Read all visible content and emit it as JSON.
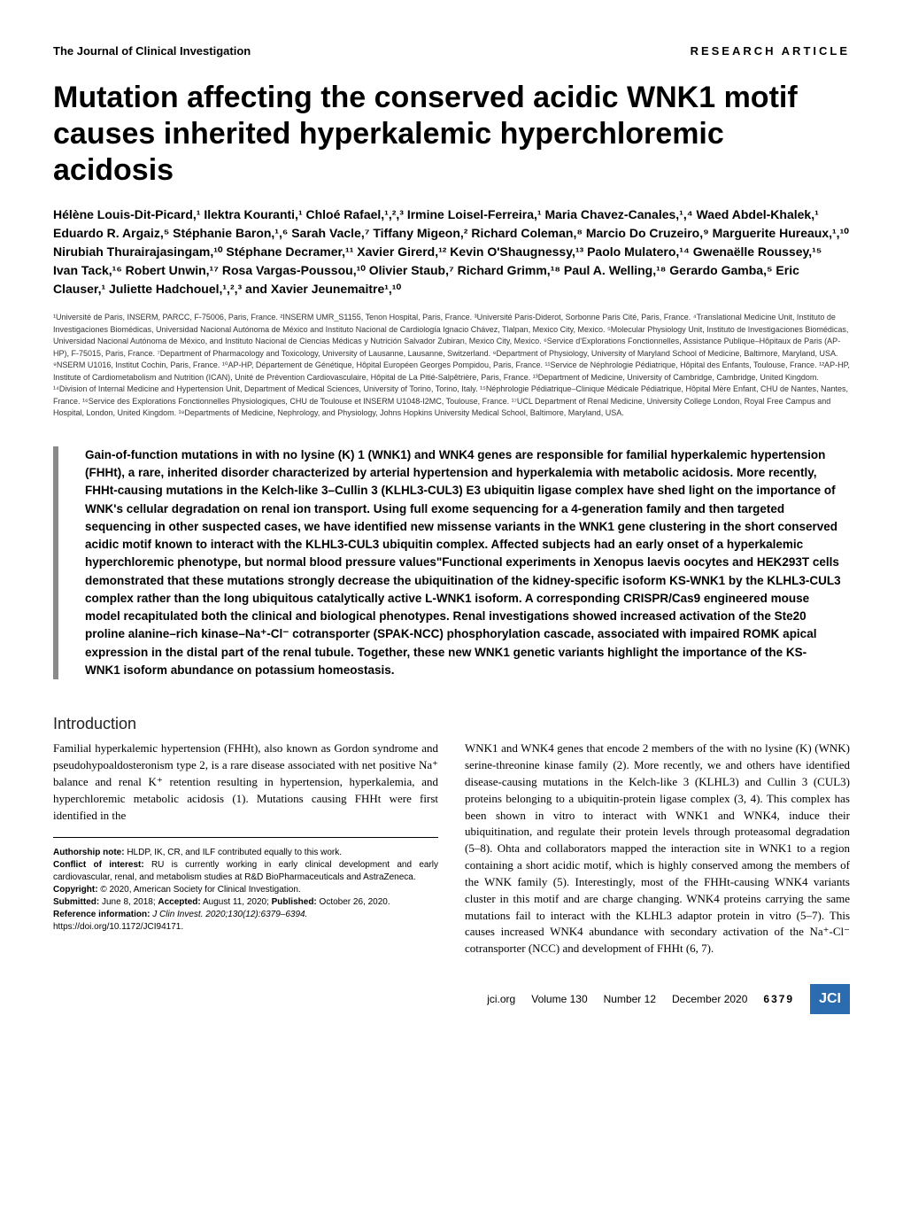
{
  "header": {
    "journal": "The Journal of Clinical Investigation",
    "article_type": "RESEARCH ARTICLE"
  },
  "title": "Mutation affecting the conserved acidic WNK1 motif causes inherited hyperkalemic hyperchloremic acidosis",
  "authors": "Hélène Louis-Dit-Picard,¹ Ilektra Kouranti,¹ Chloé Rafael,¹,²,³ Irmine Loisel-Ferreira,¹ Maria Chavez-Canales,¹,⁴ Waed Abdel-Khalek,¹ Eduardo R. Argaiz,⁵ Stéphanie Baron,¹,⁶ Sarah Vacle,⁷ Tiffany Migeon,² Richard Coleman,⁸ Marcio Do Cruzeiro,⁹ Marguerite Hureaux,¹,¹⁰ Nirubiah Thurairajasingam,¹⁰ Stéphane Decramer,¹¹ Xavier Girerd,¹² Kevin O'Shaugnessy,¹³ Paolo Mulatero,¹⁴ Gwenaëlle Roussey,¹⁵ Ivan Tack,¹⁶ Robert Unwin,¹⁷ Rosa Vargas-Poussou,¹⁰ Olivier Staub,⁷ Richard Grimm,¹⁸ Paul A. Welling,¹⁸ Gerardo Gamba,⁵ Eric Clauser,¹ Juliette Hadchouel,¹,²,³ and Xavier Jeunemaitre¹,¹⁰",
  "affiliations": "¹Université de Paris, INSERM, PARCC, F-75006, Paris, France. ²INSERM UMR_S1155, Tenon Hospital, Paris, France. ³Université Paris-Diderot, Sorbonne Paris Cité, Paris, France. ⁴Translational Medicine Unit, Instituto de Investigaciones Biomédicas, Universidad Nacional Autónoma de México and Instituto Nacional de Cardiología Ignacio Chávez, Tlalpan, Mexico City, Mexico. ⁵Molecular Physiology Unit, Instituto de Investigaciones Biomédicas, Universidad Nacional Autónoma de México, and Instituto Nacional de Ciencias Médicas y Nutrición Salvador Zubiran, Mexico City, Mexico. ⁶Service d'Explorations Fonctionnelles, Assistance Publique–Hôpitaux de Paris (AP-HP), F-75015, Paris, France. ⁷Department of Pharmacology and Toxicology, University of Lausanne, Lausanne, Switzerland. ⁸Department of Physiology, University of Maryland School of Medicine, Baltimore, Maryland, USA. ⁹NSERM U1016, Institut Cochin, Paris, France. ¹⁰AP-HP, Département de Génétique, Hôpital Européen Georges Pompidou, Paris, France. ¹¹Service de Néphrologie Pédiatrique, Hôpital des Enfants, Toulouse, France. ¹²AP-HP, Institute of Cardiometabolism and Nutrition (ICAN), Unité de Prévention Cardiovasculaire, Hôpital de La Pitié-Salpêtrière, Paris, France. ¹³Department of Medicine, University of Cambridge, Cambridge, United Kingdom. ¹⁴Division of Internal Medicine and Hypertension Unit, Department of Medical Sciences, University of Torino, Torino, Italy. ¹⁵Néphrologie Pédiatrique–Clinique Médicale Pédiatrique, Hôpital Mère Enfant, CHU de Nantes, Nantes, France. ¹⁶Service des Explorations Fonctionnelles Physiologiques, CHU de Toulouse et INSERM U1048-I2MC, Toulouse, France. ¹⁷UCL Department of Renal Medicine, University College London, Royal Free Campus and Hospital, London, United Kingdom. ¹⁸Departments of Medicine, Nephrology, and Physiology, Johns Hopkins University Medical School, Baltimore, Maryland, USA.",
  "abstract": "Gain-of-function mutations in with no lysine (K) 1 (WNK1) and WNK4 genes are responsible for familial hyperkalemic hypertension (FHHt), a rare, inherited disorder characterized by arterial hypertension and hyperkalemia with metabolic acidosis. More recently, FHHt-causing mutations in the Kelch-like 3–Cullin 3 (KLHL3-CUL3) E3 ubiquitin ligase complex have shed light on the importance of WNK's cellular degradation on renal ion transport. Using full exome sequencing for a 4-generation family and then targeted sequencing in other suspected cases, we have identified new missense variants in the WNK1 gene clustering in the short conserved acidic motif known to interact with the KLHL3-CUL3 ubiquitin complex. Affected subjects had an early onset of a hyperkalemic hyperchloremic phenotype, but normal blood pressure values\"Functional experiments in Xenopus laevis oocytes and HEK293T cells demonstrated that these mutations strongly decrease the ubiquitination of the kidney-specific isoform KS-WNK1 by the KLHL3-CUL3 complex rather than the long ubiquitous catalytically active L-WNK1 isoform. A corresponding CRISPR/Cas9 engineered mouse model recapitulated both the clinical and biological phenotypes. Renal investigations showed increased activation of the Ste20 proline alanine–rich kinase–Na⁺-Cl⁻ cotransporter (SPAK-NCC) phosphorylation cascade, associated with impaired ROMK apical expression in the distal part of the renal tubule. Together, these new WNK1 genetic variants highlight the importance of the KS-WNK1 isoform abundance on potassium homeostasis.",
  "section_heading": "Introduction",
  "intro_left": "Familial hyperkalemic hypertension (FHHt), also known as Gordon syndrome and pseudohypoaldosteronism type 2, is a rare disease associated with net positive Na⁺ balance and renal K⁺ retention resulting in hypertension, hyperkalemia, and hyperchloremic metabolic acidosis (1). Mutations causing FHHt were first identified in the",
  "intro_right": "WNK1 and WNK4 genes that encode 2 members of the with no lysine (K) (WNK) serine-threonine kinase family (2). More recently, we and others have identified disease-causing mutations in the Kelch-like 3 (KLHL3) and Cullin 3 (CUL3) proteins belonging to a ubiquitin-protein ligase complex (3, 4). This complex has been shown in vitro to interact with WNK1 and WNK4, induce their ubiquitination, and regulate their protein levels through proteasomal degradation (5–8). Ohta and collaborators mapped the interaction site in WNK1 to a region containing a short acidic motif, which is highly conserved among the members of the WNK family (5). Interestingly, most of the FHHt-causing WNK4 variants cluster in this motif and are charge changing. WNK4 proteins carrying the same mutations fail to interact with the KLHL3 adaptor protein in vitro (5–7). This causes increased WNK4 abundance with secondary activation of the Na⁺-Cl⁻ cotransporter (NCC) and development of FHHt (6, 7).",
  "footnotes": {
    "authorship_label": "Authorship note:",
    "authorship_text": " HLDP, IK, CR, and ILF contributed equally to this work.",
    "conflict_label": "Conflict of interest:",
    "conflict_text": " RU is currently working in early clinical development and early cardiovascular, renal, and metabolism studies at R&D BioPharmaceuticals and AstraZeneca.",
    "copyright_label": "Copyright:",
    "copyright_text": " © 2020, American Society for Clinical Investigation.",
    "submitted_label": "Submitted:",
    "submitted_text": " June 8, 2018; ",
    "accepted_label": "Accepted:",
    "accepted_text": " August 11, 2020; ",
    "published_label": "Published:",
    "published_text": " October 26, 2020.",
    "reference_label": "Reference information:",
    "reference_text": " J Clin Invest. 2020;130(12):6379–6394.",
    "doi": "https://doi.org/10.1172/JCI94171."
  },
  "footer": {
    "site": "jci.org",
    "volume": "Volume 130",
    "number": "Number 12",
    "date": "December 2020",
    "page": "6379",
    "badge": "JCI"
  },
  "colors": {
    "badge_bg": "#2b6cb0",
    "abstract_bar": "#8a8a8a"
  }
}
